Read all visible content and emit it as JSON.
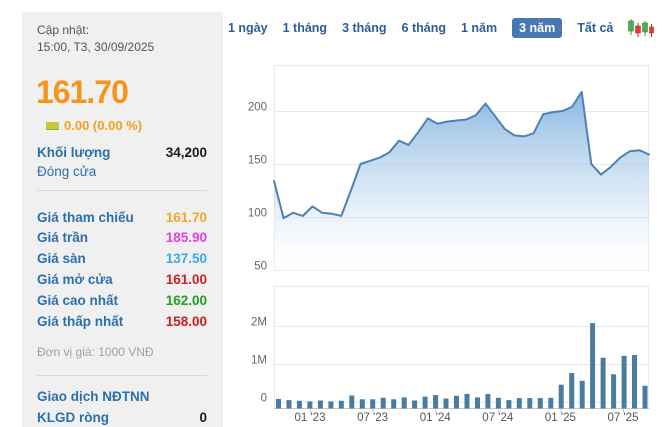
{
  "panel": {
    "updated_label": "Cập nhật:",
    "updated_time": "15:00, T3, 30/09/2025",
    "price": "161.70",
    "change_text": "0.00 (0.00 %)",
    "change_indicator_color": "#c8c935",
    "volume_label": "Khối lượng",
    "volume_value": "34,200",
    "close_label": "Đóng cửa",
    "price_rows": [
      {
        "label": "Giá tham chiếu",
        "value": "161.70",
        "color": "#f5a623"
      },
      {
        "label": "Giá trần",
        "value": "185.90",
        "color": "#e23fe2"
      },
      {
        "label": "Giá sàn",
        "value": "137.50",
        "color": "#3aa9e8"
      },
      {
        "label": "Giá mở cửa",
        "value": "161.00",
        "color": "#cc2020"
      },
      {
        "label": "Giá cao nhất",
        "value": "162.00",
        "color": "#1fa31f"
      },
      {
        "label": "Giá thấp nhất",
        "value": "158.00",
        "color": "#cc2020"
      }
    ],
    "unit_note": "Đơn vị giá: 1000 VNĐ",
    "foreign_trade_label": "Giao dịch NĐTNN",
    "net_volume_label": "KLGD ròng",
    "net_volume_value": "0"
  },
  "tabs": {
    "items": [
      "1 ngày",
      "1 tháng",
      "3 tháng",
      "6 tháng",
      "1 năm",
      "3 năm",
      "Tất cả"
    ],
    "active": "3 năm"
  },
  "chart_data": {
    "type": "area",
    "title": "",
    "price_series": {
      "name": "Giá",
      "values": [
        134,
        99,
        104,
        101,
        110,
        104,
        103,
        101,
        125,
        150,
        153,
        156,
        161,
        172,
        168,
        180,
        193,
        188,
        190,
        191,
        192,
        196,
        207,
        195,
        183,
        177,
        176,
        179,
        197,
        199,
        200,
        204,
        218,
        150,
        140,
        147,
        156,
        162,
        163,
        159
      ],
      "y_ticks": [
        200,
        150,
        100,
        50
      ]
    },
    "volume_series": {
      "name": "Khối lượng",
      "type": "bar",
      "values_millions": [
        0.08,
        0.05,
        0.03,
        0.015,
        0.04,
        0.015,
        0.03,
        0.17,
        0.07,
        0.07,
        0.11,
        0.07,
        0.12,
        0.04,
        0.14,
        0.18,
        0.09,
        0.16,
        0.21,
        0.12,
        0.21,
        0.11,
        0.05,
        0.1,
        0.1,
        0.1,
        0.11,
        0.45,
        0.75,
        0.55,
        2.05,
        1.15,
        0.72,
        1.2,
        1.22,
        0.42
      ],
      "y_ticks": [
        "2M",
        "1M",
        "0"
      ]
    },
    "x_tick_labels": [
      "01 '23",
      "07 '23",
      "01 '24",
      "07 '24",
      "01 '25",
      "07 '25"
    ],
    "grid": true,
    "legend": "none",
    "colors": {
      "line": "#4e81b4",
      "area_top": "#7fb0e0",
      "area_bottom": "#ffffff",
      "bar": "#497c9f",
      "grid_line": "#e8e8e8",
      "axis_line": "#c8c8c8",
      "tick_text": "#666666"
    }
  }
}
